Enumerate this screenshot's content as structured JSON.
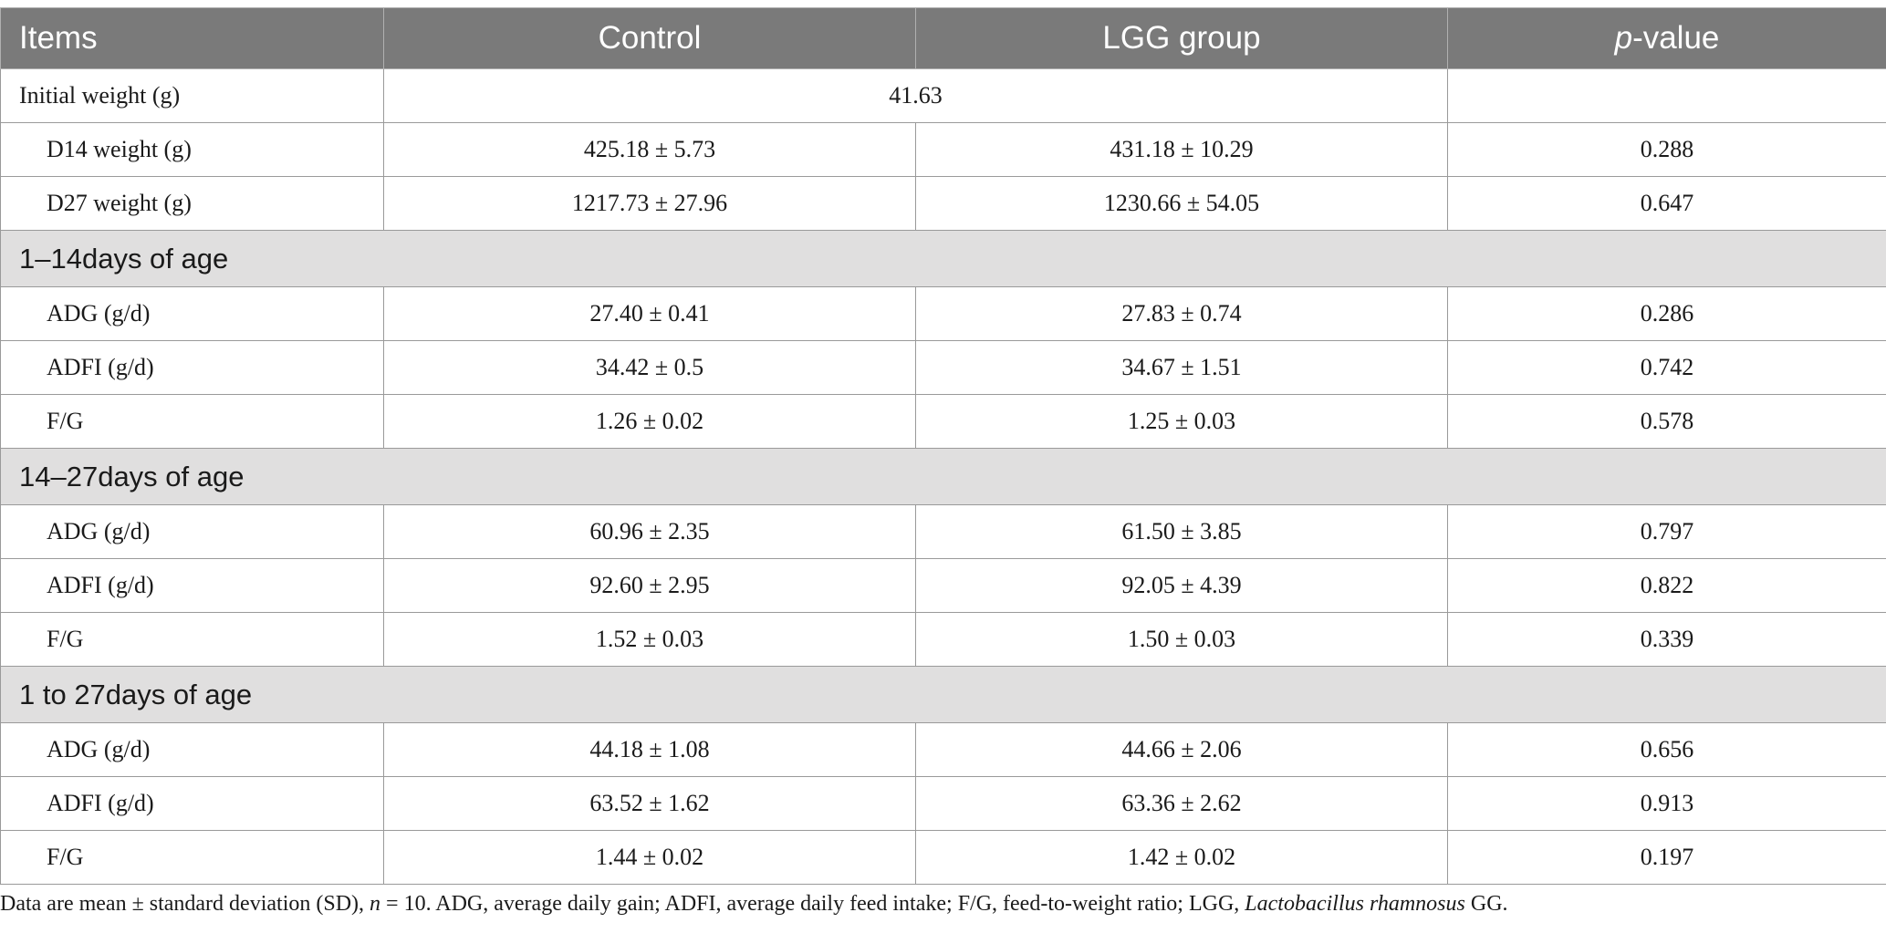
{
  "table": {
    "headers": {
      "items": "Items",
      "control": "Control",
      "lgg": "LGG group",
      "p_italic": "p",
      "p_rest": "-value"
    },
    "initial": {
      "label": "Initial weight (g)",
      "value": "41.63"
    },
    "top_rows": [
      {
        "label": "D14 weight (g)",
        "control": "425.18 ± 5.73",
        "lgg": "431.18 ± 10.29",
        "p": "0.288"
      },
      {
        "label": "D27 weight (g)",
        "control": "1217.73 ± 27.96",
        "lgg": "1230.66 ± 54.05",
        "p": "0.647"
      }
    ],
    "sections": [
      {
        "title": "1–14days of age",
        "rows": [
          {
            "label": "ADG (g/d)",
            "control": "27.40 ± 0.41",
            "lgg": "27.83 ± 0.74",
            "p": "0.286"
          },
          {
            "label": "ADFI (g/d)",
            "control": "34.42 ± 0.5",
            "lgg": "34.67 ± 1.51",
            "p": "0.742"
          },
          {
            "label": "F/G",
            "control": "1.26 ± 0.02",
            "lgg": "1.25 ± 0.03",
            "p": "0.578"
          }
        ]
      },
      {
        "title": "14–27days of age",
        "rows": [
          {
            "label": "ADG (g/d)",
            "control": "60.96 ± 2.35",
            "lgg": "61.50 ± 3.85",
            "p": "0.797"
          },
          {
            "label": "ADFI (g/d)",
            "control": "92.60 ± 2.95",
            "lgg": "92.05 ± 4.39",
            "p": "0.822"
          },
          {
            "label": "F/G",
            "control": "1.52 ± 0.03",
            "lgg": "1.50 ± 0.03",
            "p": "0.339"
          }
        ]
      },
      {
        "title": "1 to 27days of age",
        "rows": [
          {
            "label": "ADG (g/d)",
            "control": "44.18 ± 1.08",
            "lgg": "44.66 ± 2.06",
            "p": "0.656"
          },
          {
            "label": "ADFI (g/d)",
            "control": "63.52 ± 1.62",
            "lgg": "63.36 ± 2.62",
            "p": "0.913"
          },
          {
            "label": "F/G",
            "control": "1.44 ± 0.02",
            "lgg": "1.42 ± 0.02",
            "p": "0.197"
          }
        ]
      }
    ]
  },
  "footnote": {
    "part1": "Data are mean ± standard deviation (SD), ",
    "n_italic": "n",
    "part2": " = 10. ADG, average daily gain; ADFI, average daily feed intake; F/G, feed-to-weight ratio; LGG, ",
    "species_italic": "Lactobacillus rhamnosus",
    "part3": " GG."
  }
}
